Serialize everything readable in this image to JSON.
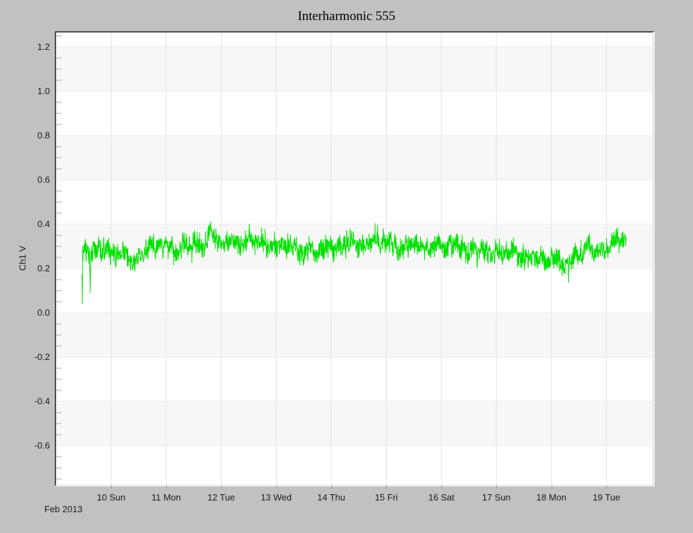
{
  "window": {
    "background_color": "#c1c1c1",
    "plot_background_color": "#ffffff",
    "band_color": "#f7f7f7",
    "gridline_color": "#e3e3e3",
    "major_line_color": "#eaeaea",
    "minor_tick_color": "#c4c4c4",
    "frame_dark_color": "#4d4d4d",
    "frame_light_color": "#ebebeb"
  },
  "chart_data": {
    "type": "line",
    "title": "Interharmonic 555",
    "ylabel": "Ch1 V",
    "month_label": "Feb 2013",
    "xlim_day_of_month": [
      9.0,
      19.83
    ],
    "ylim": [
      -0.775,
      1.265
    ],
    "x_ticks": [
      {
        "day": 10,
        "label": "10 Sun"
      },
      {
        "day": 11,
        "label": "11 Mon"
      },
      {
        "day": 12,
        "label": "12 Tue"
      },
      {
        "day": 13,
        "label": "13 Wed"
      },
      {
        "day": 14,
        "label": "14 Thu"
      },
      {
        "day": 15,
        "label": "15 Fri"
      },
      {
        "day": 16,
        "label": "16 Sat"
      },
      {
        "day": 17,
        "label": "17 Sun"
      },
      {
        "day": 18,
        "label": "18 Mon"
      },
      {
        "day": 19,
        "label": "19 Tue"
      }
    ],
    "y_major_ticks": [
      {
        "value": 1.2,
        "label": "1.2"
      },
      {
        "value": 1.0,
        "label": "1.0"
      },
      {
        "value": 0.8,
        "label": "0.8"
      },
      {
        "value": 0.6,
        "label": "0.6"
      },
      {
        "value": 0.4,
        "label": "0.4"
      },
      {
        "value": 0.2,
        "label": "0.2"
      },
      {
        "value": 0.0,
        "label": "0.0"
      },
      {
        "value": -0.2,
        "label": "-0.2"
      },
      {
        "value": -0.4,
        "label": "-0.4"
      },
      {
        "value": -0.6,
        "label": "-0.6"
      }
    ],
    "y_minor_step": 0.05,
    "gray_bands": [
      [
        1.0,
        1.2
      ],
      [
        0.6,
        0.8
      ],
      [
        0.2,
        0.4
      ],
      [
        -0.2,
        0.0
      ],
      [
        -0.6,
        -0.4
      ]
    ],
    "grid": {
      "vertical_gridlines_at_days": true,
      "horizontal_lines_at_majors": true,
      "legend": "none"
    },
    "series": [
      {
        "name": "Ch1",
        "color": "#00e100",
        "x_start_day": 9.47,
        "x_end_day": 19.36,
        "approx_value_range": [
          0.14,
          0.46
        ],
        "noise_amplitude": 0.035,
        "wander_amplitude": 0.025,
        "mean_trend": [
          [
            9.47,
            0.3
          ],
          [
            9.7,
            0.27
          ],
          [
            9.9,
            0.28
          ],
          [
            10.15,
            0.26
          ],
          [
            10.35,
            0.23
          ],
          [
            10.6,
            0.27
          ],
          [
            10.9,
            0.3
          ],
          [
            11.2,
            0.29
          ],
          [
            11.5,
            0.31
          ],
          [
            11.8,
            0.33
          ],
          [
            12.1,
            0.31
          ],
          [
            12.4,
            0.33
          ],
          [
            12.7,
            0.32
          ],
          [
            13.0,
            0.31
          ],
          [
            13.3,
            0.29
          ],
          [
            13.6,
            0.28
          ],
          [
            13.9,
            0.3
          ],
          [
            14.2,
            0.3
          ],
          [
            14.5,
            0.31
          ],
          [
            14.8,
            0.33
          ],
          [
            15.05,
            0.33
          ],
          [
            15.3,
            0.3
          ],
          [
            15.6,
            0.31
          ],
          [
            15.9,
            0.3
          ],
          [
            16.15,
            0.31
          ],
          [
            16.4,
            0.28
          ],
          [
            16.7,
            0.27
          ],
          [
            17.0,
            0.28
          ],
          [
            17.3,
            0.27
          ],
          [
            17.6,
            0.25
          ],
          [
            17.9,
            0.26
          ],
          [
            18.1,
            0.24
          ],
          [
            18.25,
            0.2
          ],
          [
            18.35,
            0.22
          ],
          [
            18.55,
            0.28
          ],
          [
            18.8,
            0.29
          ],
          [
            19.0,
            0.3
          ],
          [
            19.2,
            0.31
          ],
          [
            19.36,
            0.33
          ]
        ],
        "spikes_down": [
          [
            9.475,
            0.04
          ],
          [
            9.62,
            0.09
          ],
          [
            18.31,
            0.135
          ]
        ]
      }
    ]
  }
}
